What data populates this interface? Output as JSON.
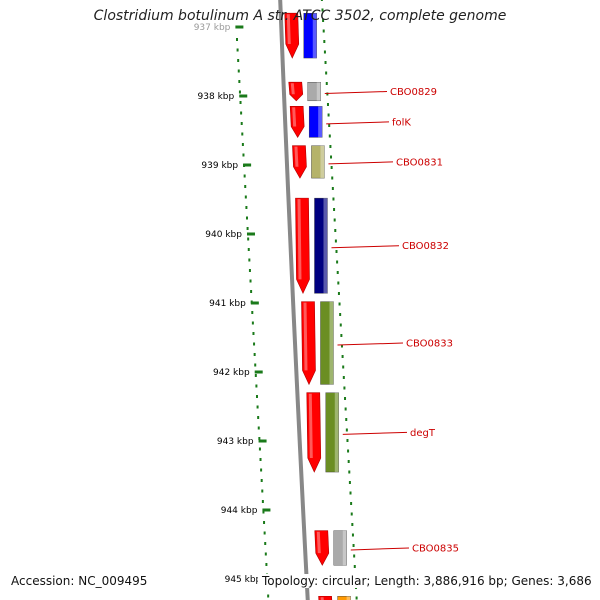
{
  "title": "Clostridium botulinum A str. ATCC 3502, complete genome",
  "accession_text": "Accession: NC_009495",
  "topology_text": "Topology: circular; Length: 3,886,916 bp; Genes: 3,686",
  "colors": {
    "backbone": "#888888",
    "tick": "#1a7a1a",
    "label": "#cc0000",
    "forward_cds": "#ff0000",
    "feature_blue": "#0000ff",
    "feature_grey": "#aaaaaa",
    "feature_khaki": "#b5b36a",
    "feature_navy": "#000080",
    "feature_olive": "#6b8e23",
    "feature_orange": "#ff9900"
  },
  "scale": {
    "unit": "kbp",
    "ticks": [
      {
        "kbp": 937,
        "label": "937 kbp"
      },
      {
        "kbp": 938,
        "label": "938 kbp"
      },
      {
        "kbp": 939,
        "label": "939 kbp"
      },
      {
        "kbp": 940,
        "label": "940 kbp"
      },
      {
        "kbp": 941,
        "label": "941 kbp"
      },
      {
        "kbp": 942,
        "label": "942 kbp"
      },
      {
        "kbp": 943,
        "label": "943 kbp"
      },
      {
        "kbp": 944,
        "label": "944 kbp"
      },
      {
        "kbp": 945,
        "label": "945 kbp"
      }
    ]
  },
  "genes": [
    {
      "label": "",
      "start_kbp": 936.8,
      "end_kbp": 937.45,
      "color": "#0000ff"
    },
    {
      "label": "CBO0829",
      "start_kbp": 937.8,
      "end_kbp": 938.07,
      "color": "#aaaaaa"
    },
    {
      "label": "folK",
      "start_kbp": 938.15,
      "end_kbp": 938.6,
      "color": "#0000ff"
    },
    {
      "label": "CBO0831",
      "start_kbp": 938.72,
      "end_kbp": 939.19,
      "color": "#b5b36a"
    },
    {
      "label": "CBO0832",
      "start_kbp": 939.48,
      "end_kbp": 940.86,
      "color": "#000080"
    },
    {
      "label": "CBO0833",
      "start_kbp": 940.98,
      "end_kbp": 942.18,
      "color": "#6b8e23"
    },
    {
      "label": "degT",
      "start_kbp": 942.3,
      "end_kbp": 943.45,
      "color": "#6b8e23"
    },
    {
      "label": "CBO0835",
      "start_kbp": 944.3,
      "end_kbp": 944.8,
      "color": "#aaaaaa"
    },
    {
      "label": "",
      "start_kbp": 945.25,
      "end_kbp": 945.6,
      "color": "#ff9900"
    }
  ]
}
